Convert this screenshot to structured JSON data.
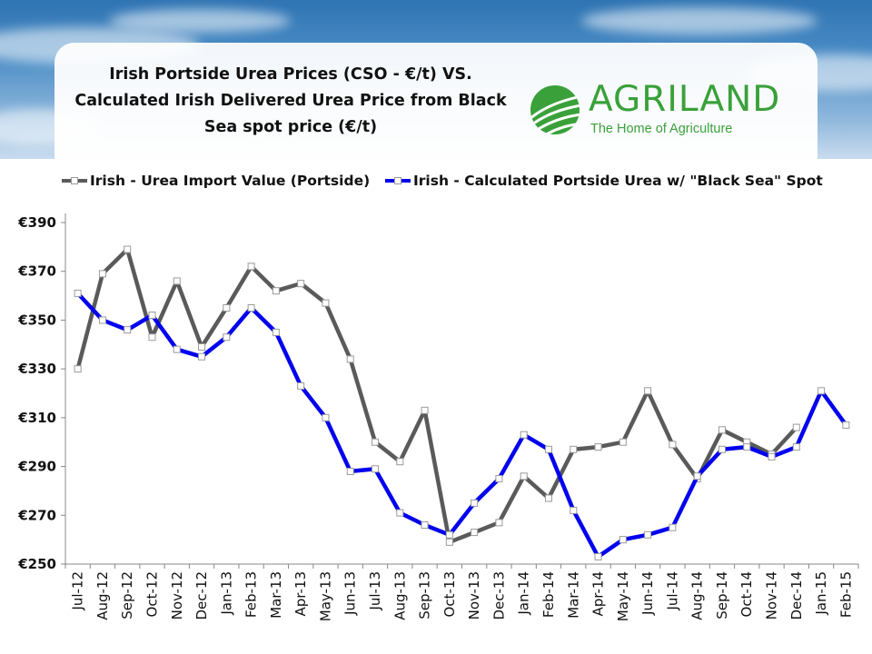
{
  "header": {
    "title_line1": "Irish Portside Urea Prices (CSO - €/t)  VS.",
    "title_line2": "Calculated Irish Delivered Urea Price from Black",
    "title_line3": "Sea spot price (€/t)"
  },
  "logo": {
    "name": "AGRILAND",
    "tagline": "The Home of Agriculture",
    "icon": "globe-stripes-icon"
  },
  "colors": {
    "series_gray": "#5a5a5a",
    "series_blue": "#0000ee",
    "logo_green": "#3aa13a"
  },
  "chart_data": {
    "type": "line",
    "title": "Irish Portside Urea Prices (CSO - €/t) VS. Calculated Irish Delivered Urea Price from Black Sea spot price (€/t)",
    "xlabel": "",
    "ylabel": "",
    "ylim": [
      250,
      390
    ],
    "ytick_step": 20,
    "ytick_labels": [
      "€390",
      "€370",
      "€350",
      "€330",
      "€310",
      "€290",
      "€270",
      "€250"
    ],
    "grid": false,
    "legend_position": "top",
    "categories": [
      "Jul-12",
      "Aug-12",
      "Sep-12",
      "Oct-12",
      "Nov-12",
      "Dec-12",
      "Jan-13",
      "Feb-13",
      "Mar-13",
      "Apr-13",
      "May-13",
      "Jun-13",
      "Jul-13",
      "Aug-13",
      "Sep-13",
      "Oct-13",
      "Nov-13",
      "Dec-13",
      "Jan-14",
      "Feb-14",
      "Mar-14",
      "Apr-14",
      "May-14",
      "Jun-14",
      "Jul-14",
      "Aug-14",
      "Sep-14",
      "Oct-14",
      "Nov-14",
      "Dec-14",
      "Jan-15",
      "Feb-15"
    ],
    "series": [
      {
        "name": "Irish - Urea  Import Value (Portside)",
        "color": "#5a5a5a",
        "values": [
          330,
          369,
          379,
          343,
          366,
          339,
          355,
          372,
          362,
          365,
          357,
          334,
          300,
          292,
          313,
          259,
          263,
          267,
          286,
          277,
          297,
          298,
          300,
          321,
          299,
          285,
          305,
          300,
          295,
          306,
          null,
          null
        ]
      },
      {
        "name": "Irish - Calculated Portside Urea w/  \"Black Sea\" Spot",
        "color": "#0000ee",
        "values": [
          361,
          350,
          346,
          352,
          338,
          335,
          343,
          355,
          345,
          323,
          310,
          288,
          289,
          271,
          266,
          262,
          275,
          285,
          303,
          297,
          272,
          253,
          260,
          262,
          265,
          286,
          297,
          298,
          294,
          298,
          321,
          307
        ]
      }
    ]
  }
}
